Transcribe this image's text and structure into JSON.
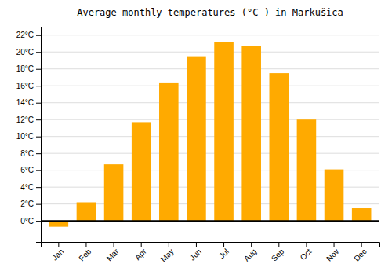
{
  "chart_data": {
    "type": "bar",
    "title": "Average monthly temperatures (°C ) in Markušica",
    "categories": [
      "Jan",
      "Feb",
      "Mar",
      "Apr",
      "May",
      "Jun",
      "Jul",
      "Aug",
      "Sep",
      "Oct",
      "Nov",
      "Dec"
    ],
    "values": [
      -0.7,
      2.2,
      6.7,
      11.7,
      16.4,
      19.5,
      21.2,
      20.7,
      17.5,
      12.0,
      6.1,
      1.5
    ],
    "color": "#FFAA00",
    "ylim": [
      -2.5,
      23
    ],
    "yticks": [
      {
        "value": 0,
        "label": "0°C"
      },
      {
        "value": 2,
        "label": "2°C"
      },
      {
        "value": 4,
        "label": "4°C"
      },
      {
        "value": 6,
        "label": "6°C"
      },
      {
        "value": 8,
        "label": "8°C"
      },
      {
        "value": 10,
        "label": "10°C"
      },
      {
        "value": 12,
        "label": "12°C"
      },
      {
        "value": 14,
        "label": "14°C"
      },
      {
        "value": 16,
        "label": "16°C"
      },
      {
        "value": 18,
        "label": "18°C"
      },
      {
        "value": 20,
        "label": "20°C"
      },
      {
        "value": 22,
        "label": "22°C"
      }
    ],
    "grid": true
  }
}
